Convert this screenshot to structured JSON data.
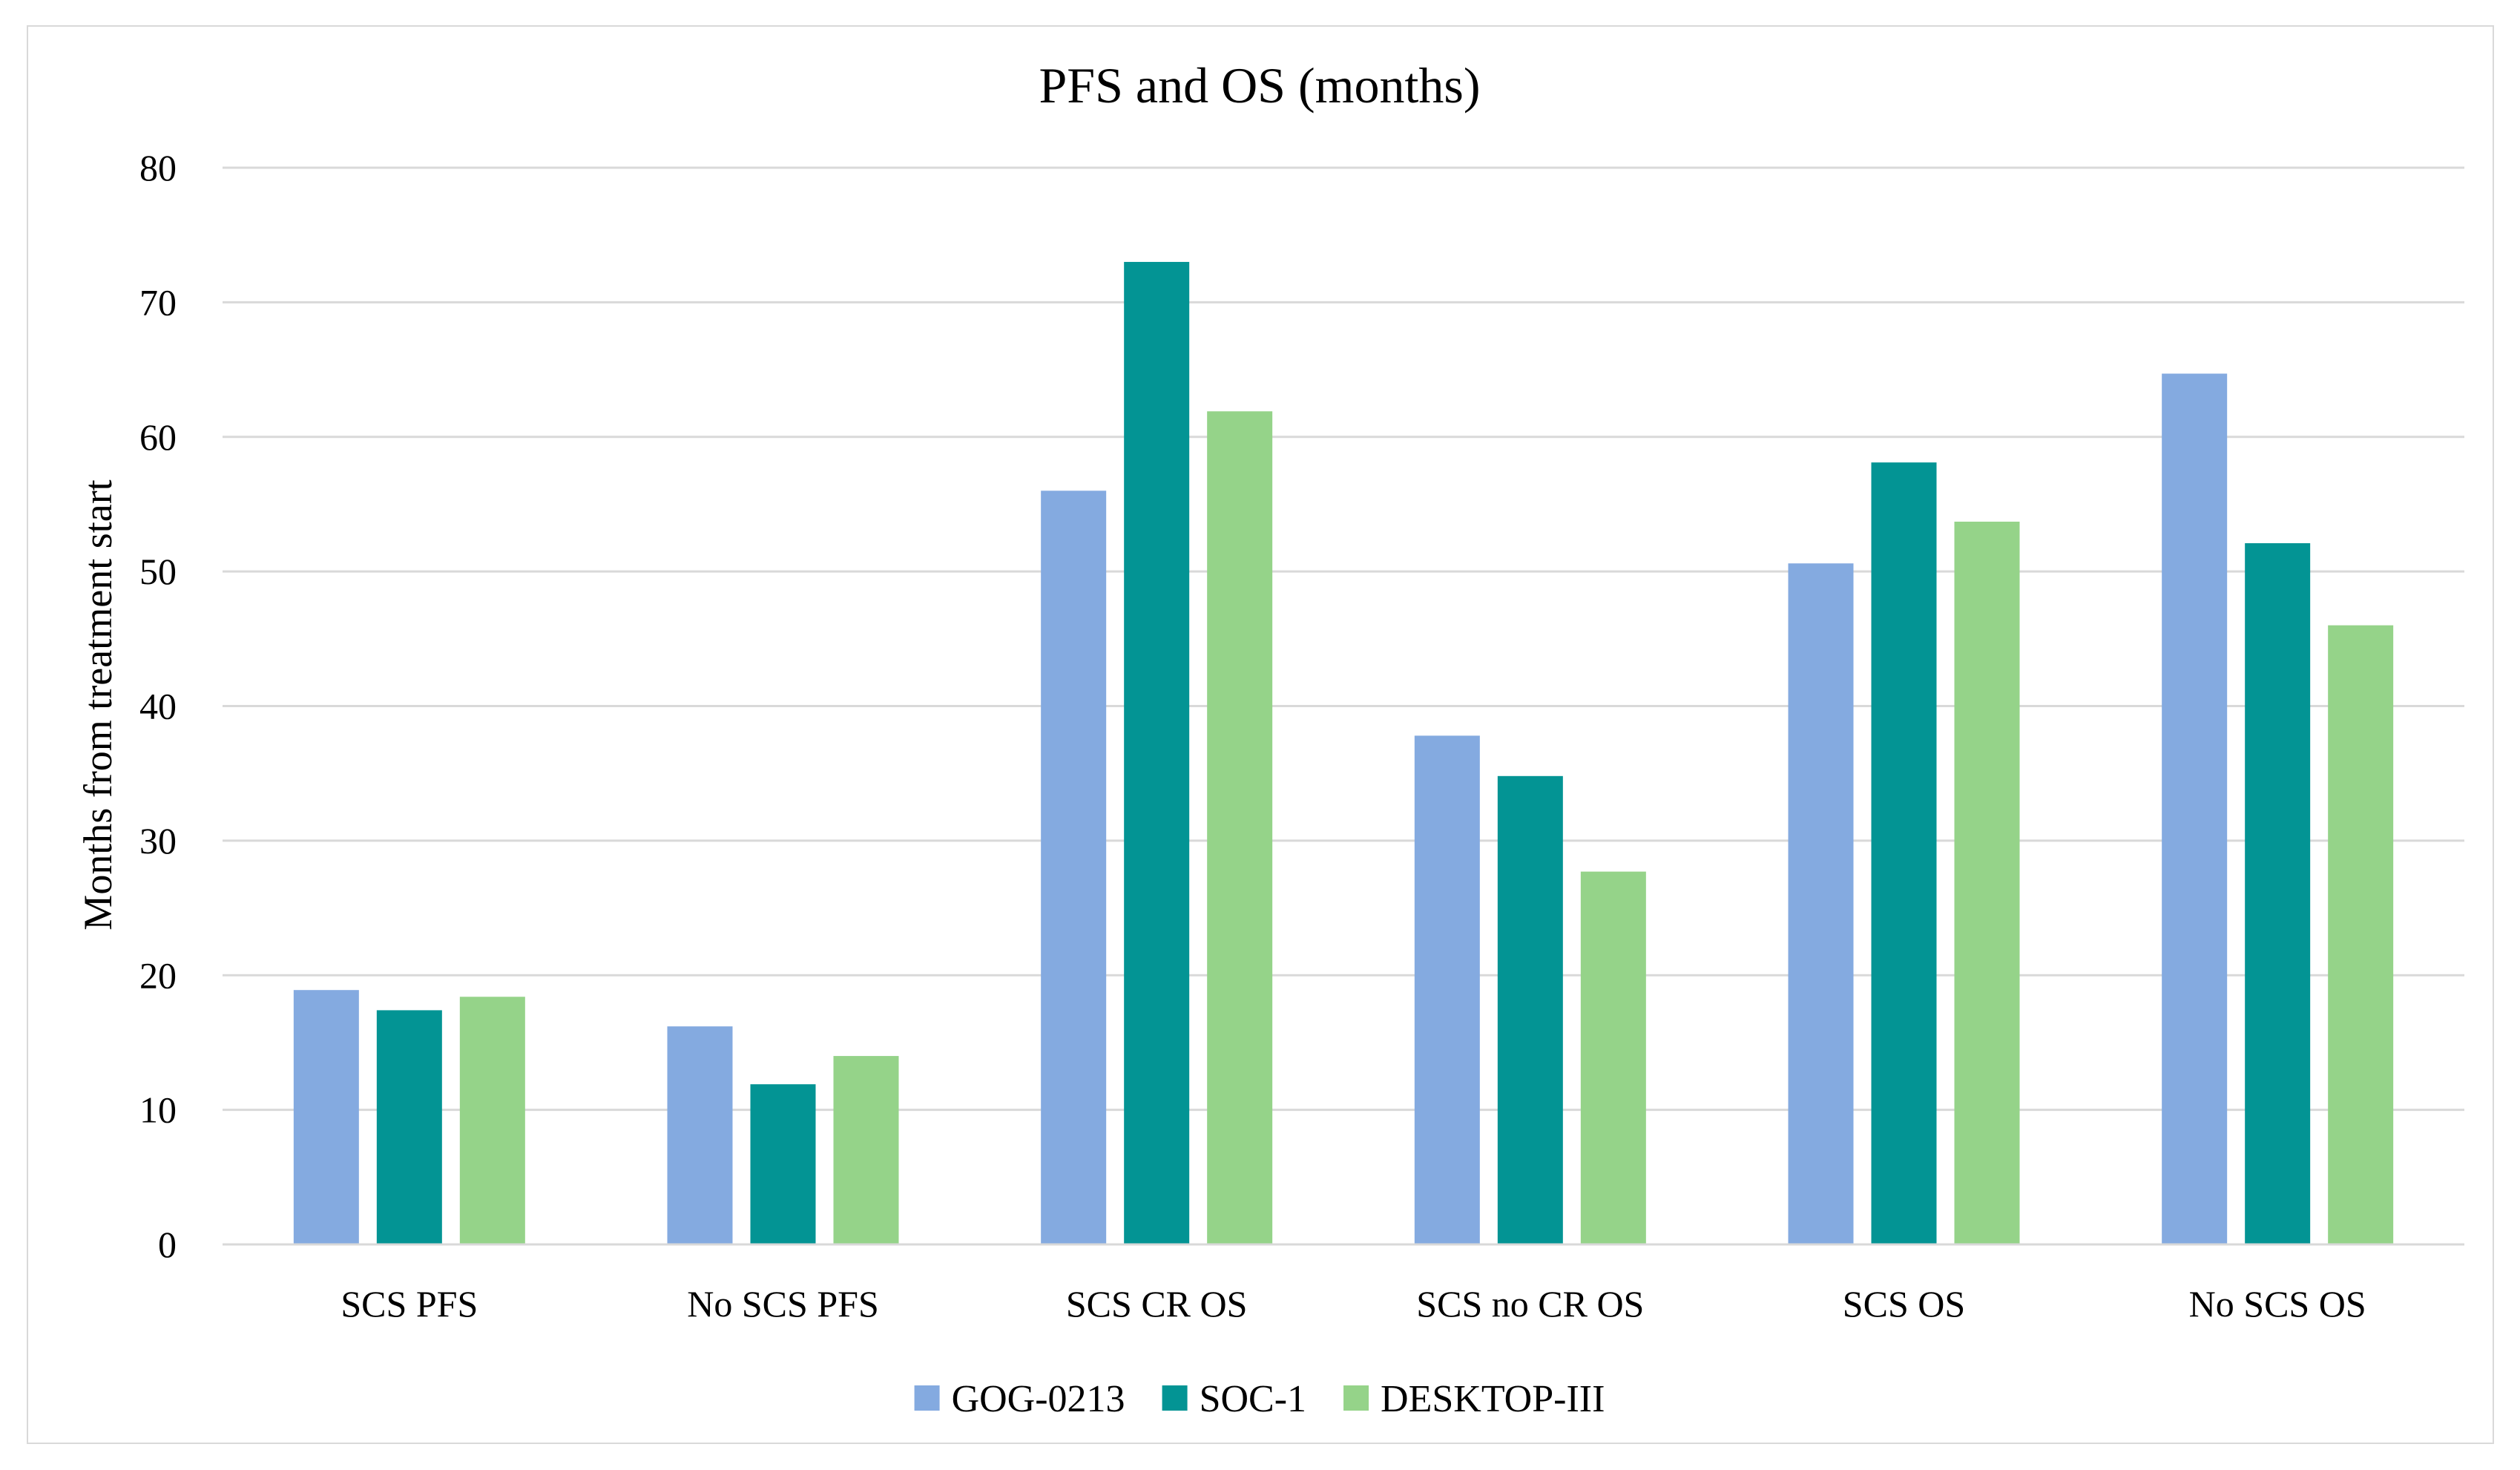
{
  "chart_data": {
    "type": "bar",
    "title": "PFS and OS (months)",
    "xlabel": "",
    "ylabel": "Months from treatment start",
    "ylim": [
      0,
      80
    ],
    "yticks": [
      0,
      10,
      20,
      30,
      40,
      50,
      60,
      70,
      80
    ],
    "grid": true,
    "legend_position": "bottom",
    "categories": [
      "SCS PFS",
      "No SCS PFS",
      "SCS CR OS",
      "SCS no CR OS",
      "SCS OS",
      "No SCS OS"
    ],
    "series": [
      {
        "name": "GOG-0213",
        "color": "#84aae0",
        "values": [
          18.9,
          16.2,
          56.0,
          37.8,
          50.6,
          64.7
        ]
      },
      {
        "name": "SOC-1",
        "color": "#039494",
        "values": [
          17.4,
          11.9,
          73.0,
          34.8,
          58.1,
          52.1
        ]
      },
      {
        "name": "DESKTOP-III",
        "color": "#95d389",
        "values": [
          18.4,
          14.0,
          61.9,
          27.7,
          53.7,
          46.0
        ]
      }
    ]
  }
}
